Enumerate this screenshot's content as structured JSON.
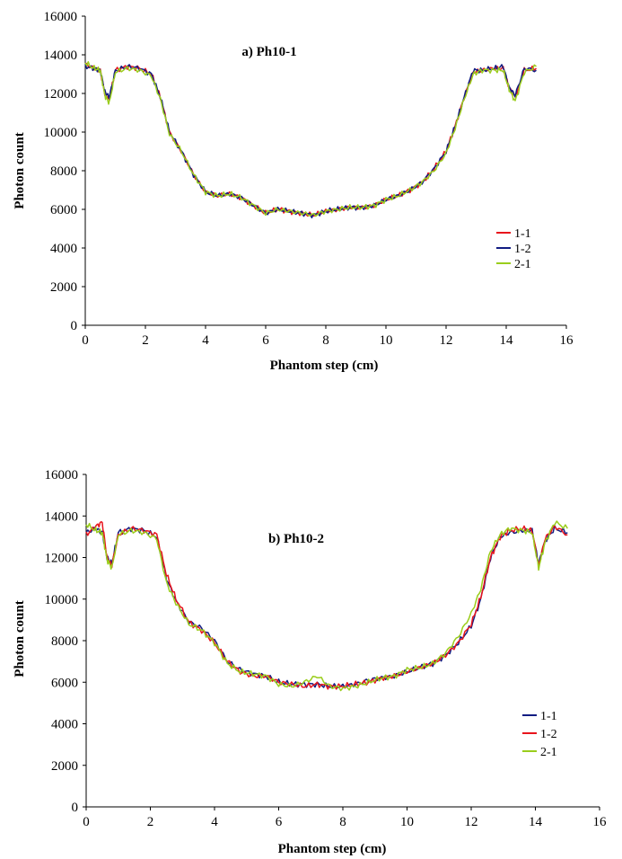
{
  "chart_data": [
    {
      "type": "line",
      "title": "a) Ph10-1",
      "xlabel": "Phantom step (cm)",
      "ylabel": "Photon count",
      "xlim": [
        0,
        16
      ],
      "ylim": [
        0,
        16000
      ],
      "xticks": [
        "0",
        "2",
        "4",
        "6",
        "8",
        "10",
        "12",
        "14",
        "16"
      ],
      "yticks": [
        "0",
        "2000",
        "4000",
        "6000",
        "8000",
        "10000",
        "12000",
        "14000",
        "16000"
      ],
      "legend_position": "lower-right",
      "grid": false,
      "series": [
        {
          "name": "1-1",
          "color": "#e8141c",
          "offset": 0,
          "x": [
            0,
            0.3,
            0.5,
            0.65,
            0.8,
            1.0,
            1.4,
            1.8,
            2.2,
            2.5,
            2.8,
            3.2,
            3.6,
            4.0,
            4.4,
            4.8,
            5.2,
            5.6,
            6.0,
            6.4,
            6.8,
            7.2,
            7.6,
            8.0,
            8.4,
            8.8,
            9.2,
            9.6,
            10.0,
            10.4,
            10.8,
            11.2,
            11.6,
            12.0,
            12.3,
            12.6,
            12.9,
            13.2,
            13.6,
            13.9,
            14.1,
            14.3,
            14.6,
            15.0
          ],
          "y": [
            13500,
            13300,
            13200,
            12000,
            11700,
            13200,
            13400,
            13300,
            13000,
            11800,
            10000,
            9000,
            7800,
            6900,
            6700,
            6800,
            6600,
            6200,
            5800,
            6000,
            5900,
            5800,
            5700,
            5900,
            6000,
            6100,
            6100,
            6200,
            6500,
            6700,
            7000,
            7400,
            8100,
            9000,
            10300,
            11800,
            13100,
            13200,
            13300,
            13300,
            12300,
            11800,
            13200,
            13300
          ]
        },
        {
          "name": "1-2",
          "color": "#111c82",
          "offset": 90,
          "x": [
            0,
            0.3,
            0.5,
            0.65,
            0.8,
            1.0,
            1.4,
            1.8,
            2.2,
            2.5,
            2.8,
            3.2,
            3.6,
            4.0,
            4.4,
            4.8,
            5.2,
            5.6,
            6.0,
            6.4,
            6.8,
            7.2,
            7.6,
            8.0,
            8.4,
            8.8,
            9.2,
            9.6,
            10.0,
            10.4,
            10.8,
            11.2,
            11.6,
            12.0,
            12.3,
            12.6,
            12.9,
            13.2,
            13.6,
            13.9,
            14.1,
            14.3,
            14.6,
            15.0
          ],
          "y": [
            13400,
            13300,
            13200,
            12100,
            11800,
            13200,
            13400,
            13300,
            13000,
            11800,
            10000,
            9000,
            7800,
            6900,
            6700,
            6800,
            6600,
            6200,
            5800,
            6000,
            5900,
            5800,
            5700,
            5900,
            6000,
            6100,
            6100,
            6200,
            6500,
            6700,
            7000,
            7400,
            8100,
            9000,
            10300,
            11800,
            13200,
            13200,
            13300,
            13400,
            12300,
            11900,
            13300,
            13200
          ]
        },
        {
          "name": "2-1",
          "color": "#9acd1c",
          "offset": 180,
          "x": [
            0,
            0.3,
            0.5,
            0.65,
            0.8,
            1.0,
            1.4,
            1.8,
            2.2,
            2.5,
            2.8,
            3.2,
            3.6,
            4.0,
            4.4,
            4.8,
            5.2,
            5.6,
            6.0,
            6.4,
            6.8,
            7.2,
            7.6,
            8.0,
            8.4,
            8.8,
            9.2,
            9.6,
            10.0,
            10.4,
            10.8,
            11.2,
            11.6,
            12.0,
            12.3,
            12.6,
            12.9,
            13.2,
            13.6,
            13.9,
            14.1,
            14.3,
            14.6,
            15.0
          ],
          "y": [
            13600,
            13300,
            13200,
            11900,
            11500,
            13100,
            13300,
            13200,
            12900,
            11700,
            9900,
            9000,
            7800,
            6900,
            6700,
            6800,
            6600,
            6200,
            5800,
            6000,
            5900,
            5800,
            5700,
            5900,
            6000,
            6100,
            6100,
            6200,
            6500,
            6700,
            7000,
            7400,
            8000,
            8900,
            10200,
            11700,
            13000,
            13200,
            13200,
            13200,
            12200,
            11600,
            13100,
            13400
          ]
        }
      ]
    },
    {
      "type": "line",
      "title": "b) Ph10-2",
      "xlabel": "Phantom step (cm)",
      "ylabel": "Photon count",
      "xlim": [
        0,
        16
      ],
      "ylim": [
        0,
        16000
      ],
      "xticks": [
        "0",
        "2",
        "4",
        "6",
        "8",
        "10",
        "12",
        "14",
        "16"
      ],
      "yticks": [
        "0",
        "2000",
        "4000",
        "6000",
        "8000",
        "10000",
        "12000",
        "14000",
        "16000"
      ],
      "legend_position": "lower-right",
      "grid": false,
      "series": [
        {
          "name": "1-1",
          "color": "#111c82",
          "offset": 0,
          "x": [
            0,
            0.3,
            0.5,
            0.65,
            0.8,
            1.0,
            1.4,
            1.8,
            2.2,
            2.5,
            2.8,
            3.2,
            3.6,
            4.0,
            4.4,
            4.8,
            5.2,
            5.6,
            6.0,
            6.4,
            6.8,
            7.2,
            7.6,
            8.0,
            8.4,
            8.8,
            9.2,
            9.6,
            10.0,
            10.4,
            10.8,
            11.2,
            11.6,
            12.0,
            12.3,
            12.6,
            12.9,
            13.2,
            13.6,
            13.9,
            14.1,
            14.3,
            14.6,
            15.0
          ],
          "y": [
            13200,
            13400,
            13200,
            12000,
            11700,
            13200,
            13400,
            13300,
            13000,
            11000,
            9900,
            8900,
            8600,
            8000,
            7000,
            6600,
            6400,
            6300,
            6000,
            5900,
            5900,
            5900,
            5800,
            5800,
            5900,
            6100,
            6200,
            6300,
            6500,
            6700,
            6900,
            7300,
            7900,
            8700,
            10000,
            12000,
            13000,
            13200,
            13300,
            13300,
            11700,
            12800,
            13400,
            13200
          ]
        },
        {
          "name": "1-2",
          "color": "#e8141c",
          "offset": 90,
          "x": [
            0,
            0.3,
            0.5,
            0.65,
            0.8,
            1.0,
            1.4,
            1.8,
            2.2,
            2.5,
            2.8,
            3.2,
            3.6,
            4.0,
            4.4,
            4.8,
            5.2,
            5.6,
            6.0,
            6.4,
            6.8,
            7.2,
            7.6,
            8.0,
            8.4,
            8.8,
            9.2,
            9.6,
            10.0,
            10.4,
            10.8,
            11.2,
            11.6,
            12.0,
            12.3,
            12.6,
            12.9,
            13.2,
            13.6,
            13.9,
            14.1,
            14.3,
            14.6,
            15.0
          ],
          "y": [
            13100,
            13500,
            13700,
            12000,
            11600,
            13100,
            13400,
            13300,
            13100,
            11200,
            10000,
            8900,
            8500,
            7900,
            7000,
            6500,
            6300,
            6300,
            6000,
            5900,
            5800,
            5900,
            5800,
            5800,
            5900,
            6000,
            6200,
            6300,
            6500,
            6700,
            6900,
            7300,
            7900,
            8800,
            10100,
            12000,
            13000,
            13300,
            13400,
            13300,
            11600,
            12900,
            13500,
            13100
          ]
        },
        {
          "name": "2-1",
          "color": "#9acd1c",
          "offset": 180,
          "x": [
            0,
            0.3,
            0.5,
            0.65,
            0.8,
            1.0,
            1.4,
            1.8,
            2.2,
            2.5,
            2.8,
            3.2,
            3.6,
            4.0,
            4.4,
            4.8,
            5.2,
            5.6,
            6.0,
            6.4,
            6.8,
            7.2,
            7.6,
            8.0,
            8.4,
            8.8,
            9.2,
            9.6,
            10.0,
            10.4,
            10.8,
            11.2,
            11.6,
            12.0,
            12.3,
            12.6,
            12.9,
            13.2,
            13.6,
            13.9,
            14.1,
            14.3,
            14.6,
            15.0
          ],
          "y": [
            13600,
            13300,
            13200,
            11900,
            11500,
            13100,
            13300,
            13200,
            12900,
            10800,
            9800,
            8800,
            8500,
            7900,
            6900,
            6500,
            6400,
            6300,
            5900,
            5800,
            6000,
            6300,
            5800,
            5700,
            5800,
            6000,
            6200,
            6300,
            6600,
            6700,
            6900,
            7400,
            8200,
            9300,
            10500,
            12300,
            13100,
            13400,
            13300,
            13200,
            11500,
            12700,
            13700,
            13400
          ]
        }
      ]
    }
  ]
}
